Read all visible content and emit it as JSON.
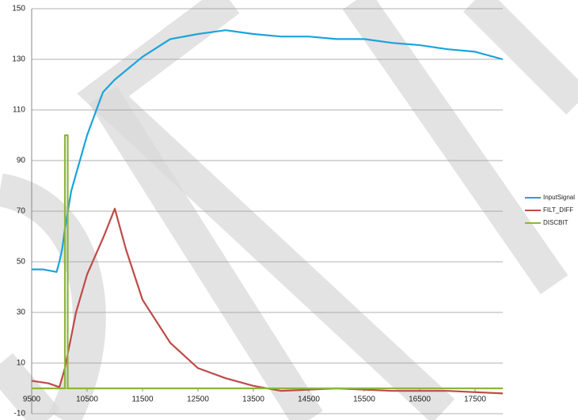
{
  "chart_data": {
    "type": "line",
    "xlim": [
      9500,
      18000
    ],
    "xticks": [
      9500,
      10500,
      11500,
      12500,
      13500,
      14500,
      15500,
      16500,
      17500
    ],
    "ylim": [
      -10,
      150
    ],
    "yticks": [
      -10,
      10,
      30,
      50,
      70,
      90,
      110,
      130,
      150
    ],
    "grid": true,
    "legend": "right",
    "series": [
      {
        "name": "InputSignal",
        "color": "#1aa3dc",
        "x": [
          9500,
          9700,
          9950,
          10000,
          10050,
          10100,
          10214,
          10357,
          10500,
          10786,
          11000,
          11500,
          12000,
          12500,
          13000,
          13500,
          14000,
          14500,
          15000,
          15500,
          16000,
          16500,
          17000,
          17500,
          18000
        ],
        "values": [
          47,
          47,
          46,
          50,
          55,
          63,
          78,
          89,
          100,
          117,
          122,
          131,
          138,
          140,
          141.5,
          140,
          139,
          139,
          138,
          138,
          136.5,
          135.6,
          134,
          133,
          130
        ]
      },
      {
        "name": "FILT_DIFF",
        "color": "#be4b48",
        "x": [
          9500,
          9800,
          10000,
          10100,
          10300,
          10500,
          10800,
          11000,
          11200,
          11500,
          12000,
          12500,
          13000,
          13500,
          14000,
          15000,
          16000,
          17000,
          18000
        ],
        "values": [
          3,
          2,
          0.5,
          8,
          30,
          45,
          60,
          71,
          55,
          35,
          18,
          8,
          4,
          1,
          -1,
          0,
          -1,
          -1,
          -2
        ]
      },
      {
        "name": "DISCBIT",
        "color": "#8db43d",
        "x": [
          9500,
          10100,
          10100,
          10150,
          10150,
          18000
        ],
        "values": [
          0,
          0,
          100,
          100,
          0,
          0
        ]
      }
    ]
  }
}
